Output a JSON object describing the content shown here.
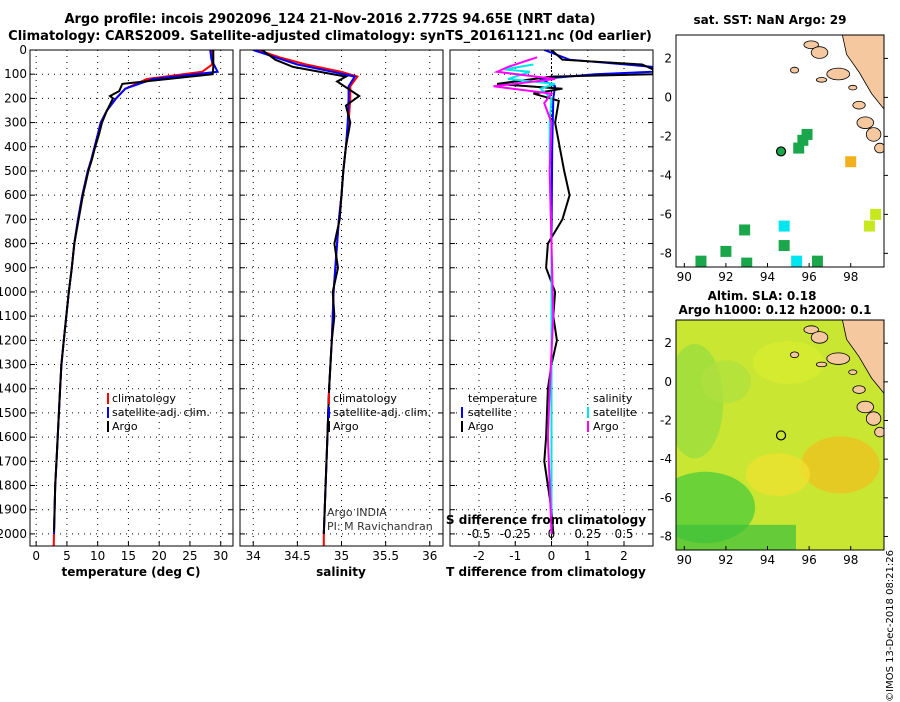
{
  "header": {
    "title_line1": "Argo profile: incois 2902096_124 21-Nov-2016 2.772S 94.65E (NRT data)",
    "title_line2": "Climatology: CARS2009. Satellite-adjusted climatology: synTS_20161121.nc (0d earlier)"
  },
  "stamp": "©IMOS 13-Dec-2018 08:21:26",
  "colors": {
    "climatology": "#ff0000",
    "satellite": "#0000ff",
    "argo": "#000000",
    "sat_salinity": "#00e5e5",
    "argo_salinity": "#ff00ff",
    "land": "#f5c8a0",
    "sst_green": "#1aa64a",
    "sst_orange": "#f2b01e",
    "sst_cyan": "#00e6f0",
    "sst_lime": "#c8e81e"
  },
  "depth_axis": {
    "ticks": [
      "0",
      "100",
      "200",
      "300",
      "400",
      "500",
      "600",
      "700",
      "800",
      "900",
      "1000",
      "1100",
      "1200",
      "1300",
      "1400",
      "1500",
      "1600",
      "1700",
      "1800",
      "1900",
      "2000"
    ]
  },
  "chart_data": [
    {
      "type": "line",
      "xlabel": "temperature (deg C)",
      "xlim": [
        -1,
        32
      ],
      "ylim": [
        2050,
        0
      ],
      "x_ticks": [
        "0",
        "5",
        "10",
        "15",
        "20",
        "25",
        "30"
      ],
      "legend": [
        "climatology",
        "satellite-adj. clim.",
        "Argo"
      ],
      "series": [
        {
          "name": "climatology",
          "points": [
            [
              28.5,
              0
            ],
            [
              28.6,
              60
            ],
            [
              27,
              90
            ],
            [
              18,
              120
            ],
            [
              14.5,
              160
            ],
            [
              13,
              200
            ],
            [
              11.5,
              250
            ],
            [
              10.5,
              300
            ],
            [
              10,
              350
            ],
            [
              9.5,
              400
            ],
            [
              9,
              450
            ],
            [
              8.4,
              500
            ],
            [
              7.5,
              600
            ],
            [
              6.8,
              700
            ],
            [
              6.2,
              800
            ],
            [
              5.8,
              900
            ],
            [
              5.3,
              1000
            ],
            [
              4.9,
              1100
            ],
            [
              4.5,
              1200
            ],
            [
              4.1,
              1300
            ],
            [
              3.9,
              1400
            ],
            [
              3.7,
              1500
            ],
            [
              3.5,
              1600
            ],
            [
              3.3,
              1700
            ],
            [
              3.1,
              1800
            ],
            [
              3,
              1900
            ],
            [
              2.9,
              2000
            ],
            [
              2.85,
              2050
            ]
          ]
        },
        {
          "name": "satellite-adj. clim.",
          "points": [
            [
              28.3,
              0
            ],
            [
              28.5,
              40
            ],
            [
              29.5,
              90
            ],
            [
              19,
              120
            ],
            [
              14.5,
              160
            ],
            [
              13,
              200
            ],
            [
              11.5,
              250
            ],
            [
              10.5,
              300
            ],
            [
              10,
              350
            ],
            [
              9.5,
              400
            ],
            [
              9,
              450
            ],
            [
              8.4,
              500
            ],
            [
              7.5,
              600
            ],
            [
              6.8,
              700
            ],
            [
              6.2,
              800
            ],
            [
              5.8,
              900
            ],
            [
              5.3,
              1000
            ],
            [
              4.9,
              1100
            ],
            [
              4.5,
              1200
            ],
            [
              4.1,
              1300
            ],
            [
              3.9,
              1400
            ],
            [
              3.7,
              1500
            ],
            [
              3.5,
              1600
            ],
            [
              3.3,
              1700
            ],
            [
              3.1,
              1800
            ],
            [
              3,
              1900
            ],
            [
              2.9,
              2000
            ]
          ]
        },
        {
          "name": "Argo",
          "points": [
            [
              28.8,
              0
            ],
            [
              28.8,
              70
            ],
            [
              28.7,
              100
            ],
            [
              14,
              140
            ],
            [
              13.5,
              170
            ],
            [
              12,
              190
            ],
            [
              12.5,
              200
            ],
            [
              11.5,
              250
            ],
            [
              10.7,
              300
            ],
            [
              10.2,
              350
            ],
            [
              9.6,
              400
            ],
            [
              9.1,
              450
            ],
            [
              8.5,
              500
            ],
            [
              7.6,
              600
            ],
            [
              6.9,
              700
            ],
            [
              6.2,
              800
            ],
            [
              5.8,
              900
            ],
            [
              5.3,
              1000
            ],
            [
              4.9,
              1100
            ],
            [
              4.5,
              1200
            ],
            [
              4.1,
              1300
            ],
            [
              3.9,
              1400
            ],
            [
              3.7,
              1500
            ],
            [
              3.5,
              1600
            ],
            [
              3.3,
              1700
            ],
            [
              3.1,
              1800
            ],
            [
              3,
              1900
            ],
            [
              2.9,
              1990
            ]
          ]
        }
      ]
    },
    {
      "type": "line",
      "xlabel": "salinity",
      "xlim": [
        33.85,
        36.15
      ],
      "ylim": [
        2050,
        0
      ],
      "x_ticks": [
        "34",
        "34.5",
        "35",
        "35.5",
        "36"
      ],
      "legend": [
        "climatology",
        "satellite-adj. clim.",
        "Argo"
      ],
      "annotation": [
        "Argo INDIA",
        "PI: M Ravichandran"
      ],
      "series": [
        {
          "name": "climatology",
          "points": [
            [
              34.05,
              0
            ],
            [
              34.3,
              30
            ],
            [
              34.6,
              60
            ],
            [
              35.0,
              90
            ],
            [
              35.18,
              110
            ],
            [
              35.1,
              150
            ],
            [
              35.1,
              200
            ],
            [
              35.08,
              300
            ],
            [
              35.05,
              400
            ],
            [
              35.02,
              500
            ],
            [
              35.0,
              600
            ],
            [
              34.97,
              700
            ],
            [
              34.95,
              800
            ],
            [
              34.93,
              900
            ],
            [
              34.91,
              1000
            ],
            [
              34.89,
              1200
            ],
            [
              34.86,
              1400
            ],
            [
              34.84,
              1600
            ],
            [
              34.82,
              1800
            ],
            [
              34.8,
              2000
            ],
            [
              34.8,
              2050
            ]
          ]
        },
        {
          "name": "satellite-adj. clim.",
          "points": [
            [
              34.0,
              0
            ],
            [
              34.25,
              30
            ],
            [
              34.5,
              60
            ],
            [
              34.9,
              90
            ],
            [
              35.15,
              110
            ],
            [
              35.08,
              150
            ],
            [
              35.08,
              200
            ],
            [
              35.07,
              300
            ],
            [
              35.05,
              400
            ],
            [
              35.02,
              500
            ],
            [
              35.0,
              600
            ],
            [
              34.97,
              700
            ],
            [
              34.95,
              800
            ],
            [
              34.93,
              900
            ],
            [
              34.91,
              1000
            ],
            [
              34.89,
              1200
            ],
            [
              34.86,
              1400
            ],
            [
              34.84,
              1600
            ],
            [
              34.82,
              1800
            ],
            [
              34.8,
              2000
            ]
          ]
        },
        {
          "name": "Argo",
          "points": [
            [
              34.1,
              0
            ],
            [
              34.25,
              40
            ],
            [
              34.45,
              70
            ],
            [
              35.05,
              110
            ],
            [
              34.95,
              130
            ],
            [
              35.2,
              190
            ],
            [
              35.05,
              230
            ],
            [
              35.1,
              300
            ],
            [
              35.05,
              400
            ],
            [
              35.02,
              500
            ],
            [
              35.0,
              600
            ],
            [
              34.98,
              700
            ],
            [
              34.92,
              800
            ],
            [
              34.96,
              900
            ],
            [
              34.9,
              1000
            ],
            [
              34.92,
              1100
            ],
            [
              34.89,
              1200
            ],
            [
              34.86,
              1400
            ],
            [
              34.84,
              1600
            ],
            [
              34.82,
              1800
            ],
            [
              34.8,
              2000
            ]
          ]
        }
      ]
    },
    {
      "type": "line",
      "xlabel": "T difference from climatology",
      "xlabel_top": "S difference from climatology",
      "xlim": [
        -2.8,
        2.8
      ],
      "ylim": [
        2050,
        0
      ],
      "x_ticks": [
        "-2",
        "-1",
        "0",
        "1",
        "2"
      ],
      "x_ticks_top": [
        "-0.5",
        "-0.25",
        "0",
        "0.25",
        "0.5"
      ],
      "legend_left": {
        "header": "temperature",
        "items": [
          "satellite",
          "Argo"
        ]
      },
      "legend_right": {
        "header": "salinity",
        "items": [
          "satellite",
          "Argo"
        ]
      },
      "series": [
        {
          "name": "satellite",
          "points": [
            [
              -0.2,
              0
            ],
            [
              0.5,
              40
            ],
            [
              2.8,
              70
            ],
            [
              2.8,
              90
            ],
            [
              1.2,
              100
            ],
            [
              -0.3,
              120
            ],
            [
              0.1,
              150
            ],
            [
              0.05,
              200
            ],
            [
              0.02,
              400
            ],
            [
              0,
              800
            ],
            [
              0,
              1200
            ],
            [
              0,
              2000
            ]
          ]
        },
        {
          "name": "Argo",
          "points": [
            [
              0,
              0
            ],
            [
              0.3,
              40
            ],
            [
              2.5,
              60
            ],
            [
              2.8,
              80
            ],
            [
              2.8,
              100
            ],
            [
              0,
              110
            ],
            [
              -1.5,
              140
            ],
            [
              0.3,
              160
            ],
            [
              -0.5,
              180
            ],
            [
              0.2,
              210
            ],
            [
              0.1,
              300
            ],
            [
              0.35,
              500
            ],
            [
              0.5,
              600
            ],
            [
              0.3,
              700
            ],
            [
              -0.1,
              800
            ],
            [
              -0.15,
              900
            ],
            [
              0.1,
              1000
            ],
            [
              0.05,
              1100
            ],
            [
              0.15,
              1200
            ],
            [
              0,
              1300
            ],
            [
              -0.1,
              1400
            ],
            [
              -0.15,
              1600
            ],
            [
              -0.2,
              1700
            ],
            [
              -0.1,
              1800
            ],
            [
              0,
              1900
            ],
            [
              0.05,
              2000
            ]
          ]
        },
        {
          "name": "satellite",
          "points": [
            [
              -0.5,
              60
            ],
            [
              -1.3,
              80
            ],
            [
              -0.6,
              90
            ],
            [
              -1.2,
              120
            ],
            [
              0.1,
              140
            ],
            [
              -0.3,
              160
            ],
            [
              0,
              200
            ],
            [
              -0.05,
              300
            ],
            [
              -0.05,
              500
            ],
            [
              0,
              800
            ],
            [
              0,
              1200
            ],
            [
              0,
              2000
            ]
          ]
        },
        {
          "name": "Argo",
          "points": [
            [
              -0.4,
              30
            ],
            [
              -1.2,
              70
            ],
            [
              -1.5,
              90
            ],
            [
              0.1,
              120
            ],
            [
              -1.6,
              150
            ],
            [
              0,
              180
            ],
            [
              -0.2,
              220
            ],
            [
              0,
              300
            ],
            [
              -0.05,
              500
            ],
            [
              0,
              800
            ],
            [
              0.05,
              1100
            ],
            [
              -0.05,
              1400
            ],
            [
              -0.1,
              1600
            ],
            [
              0,
              2000
            ]
          ]
        }
      ]
    },
    {
      "type": "heatmap",
      "title": "sat. SST: NaN Argo: 29",
      "xlim": [
        89.6,
        99.6
      ],
      "ylim": [
        -8.7,
        3.2
      ],
      "x_ticks": [
        "90",
        "92",
        "94",
        "96",
        "98"
      ],
      "y_ticks": [
        "2",
        "0",
        "-2",
        "-4",
        "-6",
        "-8"
      ],
      "argo_position": {
        "lon": 94.65,
        "lat": -2.772
      },
      "cells": [
        {
          "lon": 95.7,
          "lat": -2.2,
          "color": "green"
        },
        {
          "lon": 95.9,
          "lat": -1.9,
          "color": "green"
        },
        {
          "lon": 95.5,
          "lat": -2.6,
          "color": "green"
        },
        {
          "lon": 98.0,
          "lat": -3.3,
          "color": "orange"
        },
        {
          "lon": 92.9,
          "lat": -6.8,
          "color": "green"
        },
        {
          "lon": 94.8,
          "lat": -6.6,
          "color": "cyan"
        },
        {
          "lon": 94.8,
          "lat": -7.6,
          "color": "green"
        },
        {
          "lon": 92.0,
          "lat": -7.9,
          "color": "green"
        },
        {
          "lon": 90.8,
          "lat": -8.4,
          "color": "green"
        },
        {
          "lon": 95.4,
          "lat": -8.4,
          "color": "cyan"
        },
        {
          "lon": 96.4,
          "lat": -8.4,
          "color": "green"
        },
        {
          "lon": 99.2,
          "lat": -6.0,
          "color": "lime"
        },
        {
          "lon": 98.9,
          "lat": -6.6,
          "color": "lime"
        },
        {
          "lon": 93.0,
          "lat": -8.5,
          "color": "green"
        }
      ]
    },
    {
      "type": "heatmap",
      "title": "Altim. SLA: 0.18",
      "subtitle": "Argo h1000: 0.12 h2000: 0.1",
      "xlim": [
        89.6,
        99.6
      ],
      "ylim": [
        -8.7,
        3.2
      ],
      "x_ticks": [
        "90",
        "92",
        "94",
        "96",
        "98"
      ],
      "y_ticks": [
        "2",
        "0",
        "-2",
        "-4",
        "-6",
        "-8"
      ],
      "argo_position": {
        "lon": 94.65,
        "lat": -2.772
      }
    }
  ]
}
